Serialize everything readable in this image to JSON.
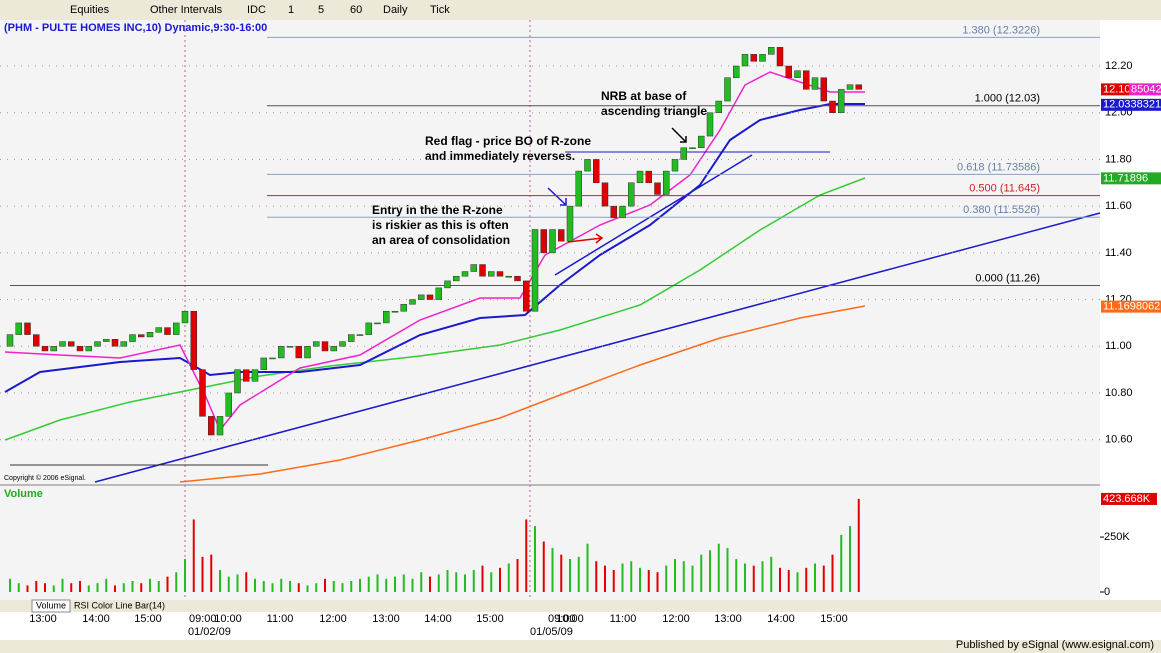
{
  "toolbar": {
    "items": [
      "Equities",
      "Other Intervals",
      "IDC",
      "1",
      "5",
      "60",
      "Daily",
      "Tick"
    ]
  },
  "chart": {
    "title": "(PHM - PULTE HOMES INC,10) Dynamic,9:30-16:00",
    "copyright": "Copyright © 2006 eSignal.",
    "ylim": [
      10.406,
      12.397
    ],
    "yticks": [
      {
        "value": 12.2,
        "label": "12.20"
      },
      {
        "value": 12.0,
        "label": "12.00"
      },
      {
        "value": 11.8,
        "label": "11.80"
      },
      {
        "value": 11.6,
        "label": "11.60"
      },
      {
        "value": 11.4,
        "label": "11.40"
      },
      {
        "value": 11.2,
        "label": "11.20"
      },
      {
        "value": 11.0,
        "label": "11.00"
      },
      {
        "value": 10.8,
        "label": "10.80"
      },
      {
        "value": 10.6,
        "label": "10.60"
      }
    ],
    "open": [
      11.0,
      11.05,
      11.1,
      11.05,
      11.0,
      10.98,
      11.0,
      11.02,
      11.0,
      10.98,
      11.0,
      11.02,
      11.03,
      11.0,
      11.02,
      11.05,
      11.04,
      11.06,
      11.08,
      11.05,
      11.1,
      11.15,
      10.9,
      10.7,
      10.62,
      10.7,
      10.8,
      10.9,
      10.85,
      10.9,
      10.95,
      10.95,
      11.0,
      11.0,
      10.95,
      11.0,
      11.02,
      10.98,
      11.0,
      11.02,
      11.05,
      11.05,
      11.1,
      11.1,
      11.15,
      11.15,
      11.18,
      11.2,
      11.22,
      11.2,
      11.25,
      11.28,
      11.3,
      11.32,
      11.35,
      11.3,
      11.32,
      11.3,
      11.3,
      11.28,
      11.15,
      11.5,
      11.4,
      11.5,
      11.45,
      11.6,
      11.75,
      11.8,
      11.7,
      11.6,
      11.55,
      11.6,
      11.7,
      11.75,
      11.7,
      11.65,
      11.75,
      11.8,
      11.85,
      11.85,
      11.9,
      12.0,
      12.05,
      12.15,
      12.2,
      12.25,
      12.22,
      12.25,
      12.28,
      12.2,
      12.15,
      12.18,
      12.1,
      12.15,
      12.05,
      12.0,
      12.1,
      12.12
    ],
    "close": [
      11.05,
      11.1,
      11.05,
      11.0,
      10.98,
      11.0,
      11.02,
      11.0,
      10.98,
      11.0,
      11.02,
      11.03,
      11.0,
      11.02,
      11.05,
      11.04,
      11.06,
      11.08,
      11.05,
      11.1,
      11.15,
      10.9,
      10.7,
      10.62,
      10.7,
      10.8,
      10.9,
      10.85,
      10.9,
      10.95,
      10.95,
      11.0,
      11.0,
      10.95,
      11.0,
      11.02,
      10.98,
      11.0,
      11.02,
      11.05,
      11.05,
      11.1,
      11.1,
      11.15,
      11.15,
      11.18,
      11.2,
      11.22,
      11.2,
      11.25,
      11.28,
      11.3,
      11.32,
      11.35,
      11.3,
      11.32,
      11.3,
      11.3,
      11.28,
      11.15,
      11.5,
      11.4,
      11.5,
      11.45,
      11.6,
      11.75,
      11.8,
      11.7,
      11.6,
      11.55,
      11.6,
      11.7,
      11.75,
      11.7,
      11.65,
      11.75,
      11.8,
      11.85,
      11.85,
      11.9,
      12.0,
      12.05,
      12.15,
      12.2,
      12.25,
      12.22,
      12.25,
      12.28,
      12.2,
      12.15,
      12.18,
      12.1,
      12.15,
      12.05,
      12.0,
      12.1,
      12.12,
      12.1
    ],
    "fib_levels": [
      {
        "label": "1.380 (12.3226)",
        "price": 12.3226,
        "color": "#8aa0c0"
      },
      {
        "label": "1.000 (12.03)",
        "price": 12.03,
        "color": "#555555"
      },
      {
        "label": "0.618 (11.73586)",
        "price": 11.73586,
        "color": "#8aa0c0"
      },
      {
        "label": "0.500 (11.645)",
        "price": 11.645,
        "color": "#cc2222"
      },
      {
        "label": "0.380 (11.5526)",
        "price": 11.5526,
        "color": "#8aa0c0"
      },
      {
        "label": "0.000 (11.26)",
        "price": 11.26,
        "color": "#555555"
      }
    ],
    "price_tags": [
      {
        "value": 12.1,
        "label": "12.10",
        "color": "#e00000"
      },
      {
        "value": 12.0338321,
        "label": "12.0338321",
        "color": "#1a1acc"
      },
      {
        "value": 11.71896,
        "label": "11.71896",
        "color": "#22aa22"
      },
      {
        "value": 11.1698062,
        "label": "11.1698062",
        "color": "#ff6a1a"
      }
    ],
    "partial_tag": "85042",
    "annotations": [
      [
        "NRB at base of",
        "ascending triangle."
      ],
      [
        "Red flag - price BO of R-zone",
        "and immediately reverses."
      ],
      [
        "Entry in the the R-zone",
        "is riskier as this is often",
        "an area of consolidation"
      ]
    ]
  },
  "volume": {
    "label": "Volume",
    "ylim": [
      0,
      478
    ],
    "yticks": [
      {
        "value": 250,
        "label": "250K"
      },
      0
    ],
    "last": {
      "value": 423.668,
      "label": "423.668K"
    },
    "values": [
      60,
      40,
      30,
      50,
      40,
      30,
      60,
      40,
      50,
      30,
      40,
      60,
      30,
      40,
      50,
      40,
      60,
      50,
      70,
      90,
      150,
      330,
      160,
      170,
      100,
      70,
      80,
      90,
      60,
      50,
      40,
      60,
      50,
      40,
      30,
      40,
      60,
      50,
      40,
      50,
      60,
      70,
      80,
      60,
      70,
      80,
      60,
      90,
      70,
      80,
      100,
      90,
      80,
      100,
      120,
      90,
      110,
      130,
      150,
      330,
      300,
      230,
      200,
      170,
      150,
      160,
      220,
      140,
      120,
      100,
      130,
      140,
      110,
      100,
      90,
      120,
      150,
      140,
      120,
      170,
      190,
      220,
      200,
      150,
      130,
      120,
      140,
      160,
      110,
      100,
      90,
      110,
      130,
      120,
      170,
      260,
      300,
      423.668
    ]
  },
  "tabs": [
    "Volume",
    "RSI Color Line Bar(14)"
  ],
  "time_axis": {
    "labels": [
      "13:00",
      "14:00",
      "15:00",
      "09:00",
      "10:00",
      "11:00",
      "12:00",
      "13:00",
      "14:00",
      "15:00",
      "09:00",
      "10:00",
      "11:00",
      "12:00",
      "13:00",
      "14:00",
      "15:00"
    ],
    "dates": [
      "01/02/09",
      "01/05/09"
    ]
  },
  "footer": "Published by eSignal (www.esignal.com)"
}
